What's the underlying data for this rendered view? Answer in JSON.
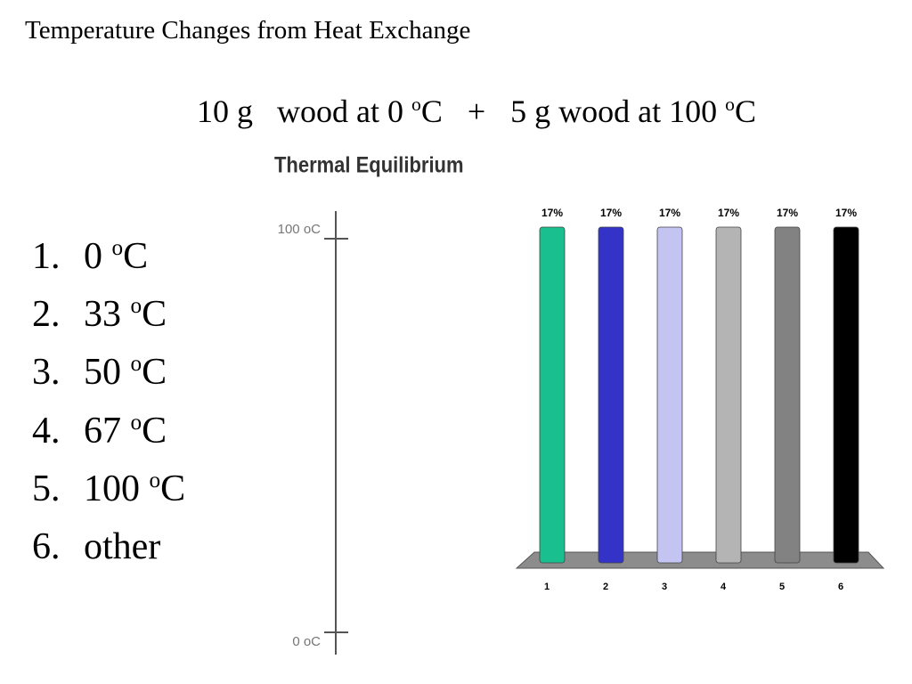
{
  "title": "Temperature Changes from Heat Exchange",
  "equation": {
    "left": {
      "text": "10 g   wood at 0 ",
      "sup": "o",
      "unit": "C"
    },
    "operator": "+",
    "right": {
      "text": "5 g wood at 100 ",
      "sup": "o",
      "unit": "C"
    }
  },
  "options": [
    {
      "number": "1.",
      "text": "0 ",
      "sup": "o",
      "unit": "C"
    },
    {
      "number": "2.",
      "text": "33 ",
      "sup": "o",
      "unit": "C"
    },
    {
      "number": "3.",
      "text": "50 ",
      "sup": "o",
      "unit": "C"
    },
    {
      "number": "4.",
      "text": "67 ",
      "sup": "o",
      "unit": "C"
    },
    {
      "number": "5.",
      "text": "100 ",
      "sup": "o",
      "unit": "C"
    },
    {
      "number": "6.",
      "text": "other"
    }
  ],
  "thermometer": {
    "title": "Thermal Equilibrium",
    "top_label": "100 oC",
    "bottom_label": "0 oC"
  },
  "chart_data": {
    "type": "bar",
    "categories": [
      "1",
      "2",
      "3",
      "4",
      "5",
      "6"
    ],
    "values": [
      17,
      17,
      17,
      17,
      17,
      17
    ],
    "value_labels": [
      "17%",
      "17%",
      "17%",
      "17%",
      "17%",
      "17%"
    ],
    "colors": [
      "#1abf8f",
      "#3333c8",
      "#c4c4f2",
      "#b4b4b4",
      "#828282",
      "#000000"
    ]
  }
}
